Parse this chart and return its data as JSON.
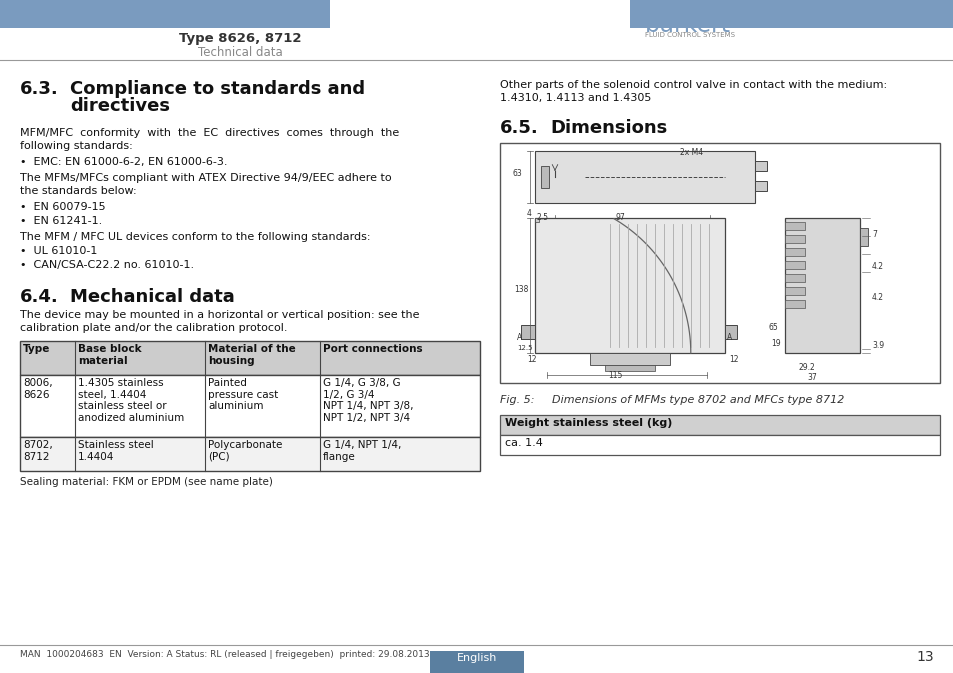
{
  "page_bg": "#ffffff",
  "header_bar_color": "#7a9bbf",
  "header_title": "Type 8626, 8712",
  "header_subtitle": "Technical data",
  "footer_text": "MAN  1000204683  EN  Version: A Status: RL (released | freigegeben)  printed: 29.08.2013",
  "footer_page_num": "13",
  "footer_lang_bg": "#5a7fa0",
  "footer_lang_text": "English",
  "burkert_color": "#7a9bbf",
  "table_header_bg": "#cccccc",
  "table_border_color": "#444444",
  "col_headers": [
    "Type",
    "Base block\nmaterial",
    "Material of the\nhousing",
    "Port connections"
  ],
  "row1": [
    "8006,\n8626",
    "1.4305 stainless\nsteel, 1.4404\nstainless steel or\nanodized aluminium",
    "Painted\npressure cast\naluminium",
    "G 1/4, G 3/8, G\n1/2, G 3/4\nNPT 1/4, NPT 3/8,\nNPT 1/2, NPT 3/4"
  ],
  "row2": [
    "8702,\n8712",
    "Stainless steel\n1.4404",
    "Polycarbonate\n(PC)",
    "G 1/4, NPT 1/4,\nflange"
  ],
  "sealing_text": "Sealing material: FKM or EPDM (see name plate)",
  "weight_header": "Weight stainless steel (kg)",
  "weight_value": "ca. 1.4"
}
